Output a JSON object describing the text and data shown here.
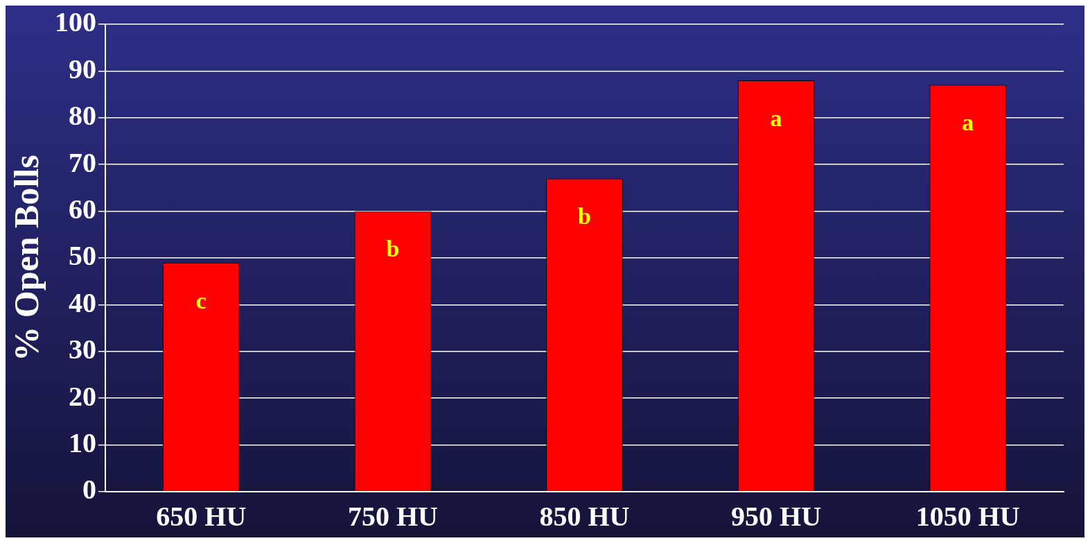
{
  "chart_data": {
    "type": "bar",
    "ylabel": "% Open Bolls",
    "categories": [
      "650 HU",
      "750 HU",
      "850 HU",
      "950 HU",
      "1050 HU"
    ],
    "values": [
      49,
      60,
      67,
      88,
      87
    ],
    "color": "#ff0000",
    "ylim": [
      0,
      100
    ],
    "yticks": [
      0,
      10,
      20,
      30,
      40,
      50,
      60,
      70,
      80,
      90,
      100
    ],
    "grid": "y",
    "annotations": [
      {
        "text": "c",
        "x": "650 HU",
        "y": 49
      },
      {
        "text": "b",
        "x": "750 HU",
        "y": 60
      },
      {
        "text": "b",
        "x": "850 HU",
        "y": 67
      },
      {
        "text": "a",
        "x": "950 HU",
        "y": 88
      },
      {
        "text": "a",
        "x": "1050 HU",
        "y": 87
      }
    ]
  }
}
